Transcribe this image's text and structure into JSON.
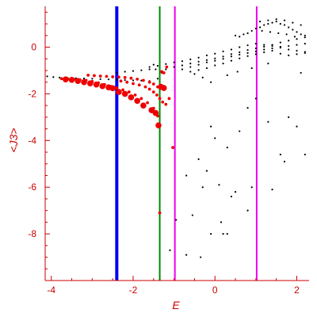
{
  "chart_data": {
    "type": "scatter",
    "title": "",
    "xlabel": "E",
    "ylabel": "<J3>",
    "xlim": [
      -4.15,
      2.3
    ],
    "ylim": [
      -10.0,
      1.75
    ],
    "xticks": [
      -4,
      -2,
      0,
      2
    ],
    "yticks": [
      0,
      -2,
      -4,
      -6,
      -8
    ],
    "grid": false,
    "colors": {
      "axis": "#cc0000",
      "black_points": "#000000",
      "red_points": "#ee0000",
      "blue_line": "#0000ee",
      "green_line": "#008800",
      "magenta_line": "#ee00ee"
    },
    "vertical_lines": [
      {
        "x": -2.4,
        "color": "#0000ee",
        "width": "thick"
      },
      {
        "x": -1.35,
        "color": "#008800",
        "width": "thin"
      },
      {
        "x": -0.98,
        "color": "#ee00ee",
        "width": "thin"
      },
      {
        "x": 1.02,
        "color": "#ee00ee",
        "width": "thin"
      }
    ],
    "series": [
      {
        "color": "#000000",
        "marker": "small",
        "points": [
          [
            -4.1,
            -1.25
          ],
          [
            -3.95,
            -1.28
          ],
          [
            -3.8,
            -1.3
          ],
          [
            -3.6,
            -1.32
          ],
          [
            -3.4,
            -1.33
          ],
          [
            -3.2,
            -1.34
          ],
          [
            -3.0,
            -1.35
          ],
          [
            -2.8,
            -1.37
          ],
          [
            -2.6,
            -1.38
          ],
          [
            -2.4,
            -1.39
          ],
          [
            -2.2,
            -1.41
          ],
          [
            -2.0,
            -1.42
          ],
          [
            -1.8,
            -1.43
          ],
          [
            -1.6,
            -1.45
          ],
          [
            -1.4,
            -1.35
          ],
          [
            -2.4,
            -1.1
          ],
          [
            -2.2,
            -1.05
          ],
          [
            -2.0,
            -1.02
          ],
          [
            -1.8,
            -0.99
          ],
          [
            -1.6,
            -0.95
          ],
          [
            -1.4,
            -0.8
          ],
          [
            -1.2,
            -0.72
          ],
          [
            -1.0,
            -0.65
          ],
          [
            -0.8,
            -0.6
          ],
          [
            -0.6,
            -0.52
          ],
          [
            -0.4,
            -0.45
          ],
          [
            -0.2,
            -0.35
          ],
          [
            0.0,
            -0.28
          ],
          [
            0.2,
            -0.18
          ],
          [
            0.4,
            -0.1
          ],
          [
            0.6,
            0.0
          ],
          [
            0.8,
            0.08
          ],
          [
            1.0,
            0.15
          ],
          [
            1.2,
            0.1
          ],
          [
            1.4,
            0.05
          ],
          [
            1.6,
            -0.02
          ],
          [
            1.8,
            -0.1
          ],
          [
            2.0,
            -0.15
          ],
          [
            2.2,
            -0.2
          ],
          [
            -1.2,
            -0.95
          ],
          [
            -1.0,
            -0.85
          ],
          [
            -0.8,
            -0.78
          ],
          [
            -0.6,
            -0.7
          ],
          [
            -0.4,
            -0.62
          ],
          [
            -0.2,
            -0.55
          ],
          [
            0.0,
            -0.48
          ],
          [
            0.2,
            -0.4
          ],
          [
            0.4,
            -0.3
          ],
          [
            0.6,
            -0.22
          ],
          [
            0.8,
            -0.12
          ],
          [
            1.0,
            -0.05
          ],
          [
            1.2,
            0.02
          ],
          [
            1.4,
            0.1
          ],
          [
            1.6,
            0.2
          ],
          [
            1.8,
            0.28
          ],
          [
            2.0,
            0.35
          ],
          [
            2.2,
            0.42
          ],
          [
            -0.8,
            -0.95
          ],
          [
            -0.6,
            -0.85
          ],
          [
            -0.4,
            -0.75
          ],
          [
            -0.2,
            -0.65
          ],
          [
            0.0,
            -0.58
          ],
          [
            0.2,
            -0.5
          ],
          [
            0.4,
            -0.4
          ],
          [
            0.6,
            -0.32
          ],
          [
            0.8,
            -0.25
          ],
          [
            1.0,
            -0.18
          ],
          [
            1.2,
            -0.1
          ],
          [
            1.4,
            -0.05
          ],
          [
            1.6,
            0.02
          ],
          [
            1.8,
            0.05
          ],
          [
            2.0,
            0.1
          ],
          [
            2.2,
            0.15
          ],
          [
            -0.6,
            -1.05
          ],
          [
            -0.4,
            -0.98
          ],
          [
            -0.2,
            -0.9
          ],
          [
            0.0,
            -0.78
          ],
          [
            0.2,
            -0.7
          ],
          [
            0.4,
            -0.58
          ],
          [
            0.6,
            -0.48
          ],
          [
            0.8,
            -0.38
          ],
          [
            1.0,
            -0.3
          ],
          [
            1.2,
            -0.22
          ],
          [
            1.4,
            -0.15
          ],
          [
            1.6,
            -0.28
          ],
          [
            1.8,
            -0.35
          ],
          [
            2.0,
            -0.3
          ],
          [
            2.2,
            -0.25
          ],
          [
            0.5,
            0.5
          ],
          [
            0.6,
            0.45
          ],
          [
            0.7,
            0.55
          ],
          [
            0.8,
            0.6
          ],
          [
            0.9,
            0.7
          ],
          [
            1.0,
            0.8
          ],
          [
            1.1,
            0.85
          ],
          [
            1.2,
            0.95
          ],
          [
            1.3,
            1.0
          ],
          [
            1.4,
            1.05
          ],
          [
            1.5,
            1.1
          ],
          [
            1.6,
            1.0
          ],
          [
            1.7,
            0.95
          ],
          [
            1.8,
            0.85
          ],
          [
            1.9,
            0.75
          ],
          [
            2.0,
            0.65
          ],
          [
            2.1,
            0.55
          ],
          [
            2.2,
            0.5
          ],
          [
            1.1,
            1.1
          ],
          [
            1.3,
            1.15
          ],
          [
            1.5,
            1.2
          ],
          [
            1.7,
            1.15
          ],
          [
            1.9,
            1.05
          ],
          [
            2.1,
            0.95
          ],
          [
            1.15,
            0.7
          ],
          [
            1.35,
            0.65
          ],
          [
            1.55,
            0.6
          ],
          [
            1.75,
            0.55
          ],
          [
            1.95,
            0.45
          ],
          [
            -0.5,
            -1.15
          ],
          [
            -0.3,
            -1.3
          ],
          [
            -0.1,
            -1.5
          ],
          [
            0.3,
            -1.2
          ],
          [
            0.55,
            -1.05
          ],
          [
            0.9,
            -0.9
          ],
          [
            1.3,
            -0.7
          ],
          [
            2.1,
            -1.1
          ],
          [
            -1.6,
            -0.85
          ],
          [
            -1.5,
            -0.75
          ],
          [
            -1.45,
            -0.95
          ],
          [
            -1.3,
            -1.1
          ],
          [
            -0.1,
            -3.4
          ],
          [
            0.0,
            -3.9
          ],
          [
            0.3,
            -4.3
          ],
          [
            0.6,
            -3.6
          ],
          [
            0.8,
            -2.6
          ],
          [
            1.0,
            -2.2
          ],
          [
            1.3,
            -3.2
          ],
          [
            1.6,
            -4.6
          ],
          [
            1.8,
            -3.0
          ],
          [
            2.2,
            -4.6
          ],
          [
            -0.4,
            -4.8
          ],
          [
            -0.2,
            -5.3
          ],
          [
            0.1,
            -5.9
          ],
          [
            0.5,
            -6.2
          ],
          [
            0.9,
            -6.0
          ],
          [
            1.4,
            -6.1
          ],
          [
            1.7,
            -4.9
          ],
          [
            2.0,
            -3.4
          ],
          [
            -0.7,
            -5.5
          ],
          [
            -0.3,
            -6.0
          ],
          [
            0.4,
            -6.4
          ],
          [
            0.8,
            -7.0
          ],
          [
            -0.55,
            -7.2
          ],
          [
            -0.95,
            -7.4
          ],
          [
            0.15,
            -7.5
          ],
          [
            -0.1,
            -8.0
          ],
          [
            0.3,
            -8.0
          ],
          [
            -1.1,
            -8.7
          ],
          [
            -0.7,
            -8.9
          ],
          [
            -0.35,
            -9.0
          ],
          [
            0.2,
            -8.0
          ]
        ]
      },
      {
        "color": "#ee0000",
        "marker": "medium",
        "points": [
          [
            -3.75,
            -1.35
          ],
          [
            -3.6,
            -1.37
          ],
          [
            -3.45,
            -1.38
          ],
          [
            -3.3,
            -1.4
          ],
          [
            -3.15,
            -1.42
          ],
          [
            -3.0,
            -1.47
          ],
          [
            -2.85,
            -1.53
          ],
          [
            -2.7,
            -1.6
          ],
          [
            -2.55,
            -1.68
          ],
          [
            -2.4,
            -1.75
          ],
          [
            -2.25,
            -1.83
          ],
          [
            -2.1,
            -1.92
          ],
          [
            -1.95,
            -2.05
          ],
          [
            -1.8,
            -2.2
          ],
          [
            -1.65,
            -2.38
          ],
          [
            -1.5,
            -2.62
          ],
          [
            -1.4,
            -2.95
          ],
          [
            -3.1,
            -1.2
          ],
          [
            -2.95,
            -1.22
          ],
          [
            -2.8,
            -1.24
          ],
          [
            -2.65,
            -1.25
          ],
          [
            -2.5,
            -1.27
          ],
          [
            -2.35,
            -1.28
          ],
          [
            -2.2,
            -1.3
          ],
          [
            -2.05,
            -1.33
          ],
          [
            -1.9,
            -1.37
          ],
          [
            -1.75,
            -1.42
          ],
          [
            -1.6,
            -1.5
          ],
          [
            -1.5,
            -1.58
          ],
          [
            -1.4,
            -1.7
          ],
          [
            -2.3,
            -1.45
          ],
          [
            -2.15,
            -1.5
          ],
          [
            -2.0,
            -1.56
          ],
          [
            -1.85,
            -1.62
          ],
          [
            -1.7,
            -1.7
          ],
          [
            -1.6,
            -1.8
          ],
          [
            -1.5,
            -1.92
          ],
          [
            -1.42,
            -2.05
          ],
          [
            -1.35,
            -2.2
          ],
          [
            -1.28,
            -2.35
          ],
          [
            -1.2,
            -2.45
          ],
          [
            -1.12,
            -2.2
          ],
          [
            -1.25,
            -1.1
          ],
          [
            -1.3,
            -1.05
          ],
          [
            -1.18,
            -0.85
          ],
          [
            -1.38,
            -1.7
          ],
          [
            -1.35,
            -7.1
          ],
          [
            -1.03,
            -4.3
          ]
        ]
      },
      {
        "color": "#ee0000",
        "marker": "large",
        "points": [
          [
            -3.65,
            -1.38
          ],
          [
            -3.5,
            -1.4
          ],
          [
            -3.35,
            -1.45
          ],
          [
            -3.2,
            -1.5
          ],
          [
            -3.05,
            -1.55
          ],
          [
            -2.9,
            -1.6
          ],
          [
            -2.75,
            -1.67
          ],
          [
            -2.6,
            -1.72
          ],
          [
            -2.5,
            -1.76
          ],
          [
            -2.35,
            -1.92
          ],
          [
            -2.2,
            -2.0
          ],
          [
            -2.05,
            -2.15
          ],
          [
            -1.9,
            -2.3
          ],
          [
            -1.75,
            -2.5
          ],
          [
            -1.55,
            -2.7
          ],
          [
            -1.45,
            -2.82
          ],
          [
            -1.38,
            -3.35
          ],
          [
            -1.32,
            -1.7
          ],
          [
            -1.25,
            -1.75
          ]
        ]
      }
    ]
  }
}
